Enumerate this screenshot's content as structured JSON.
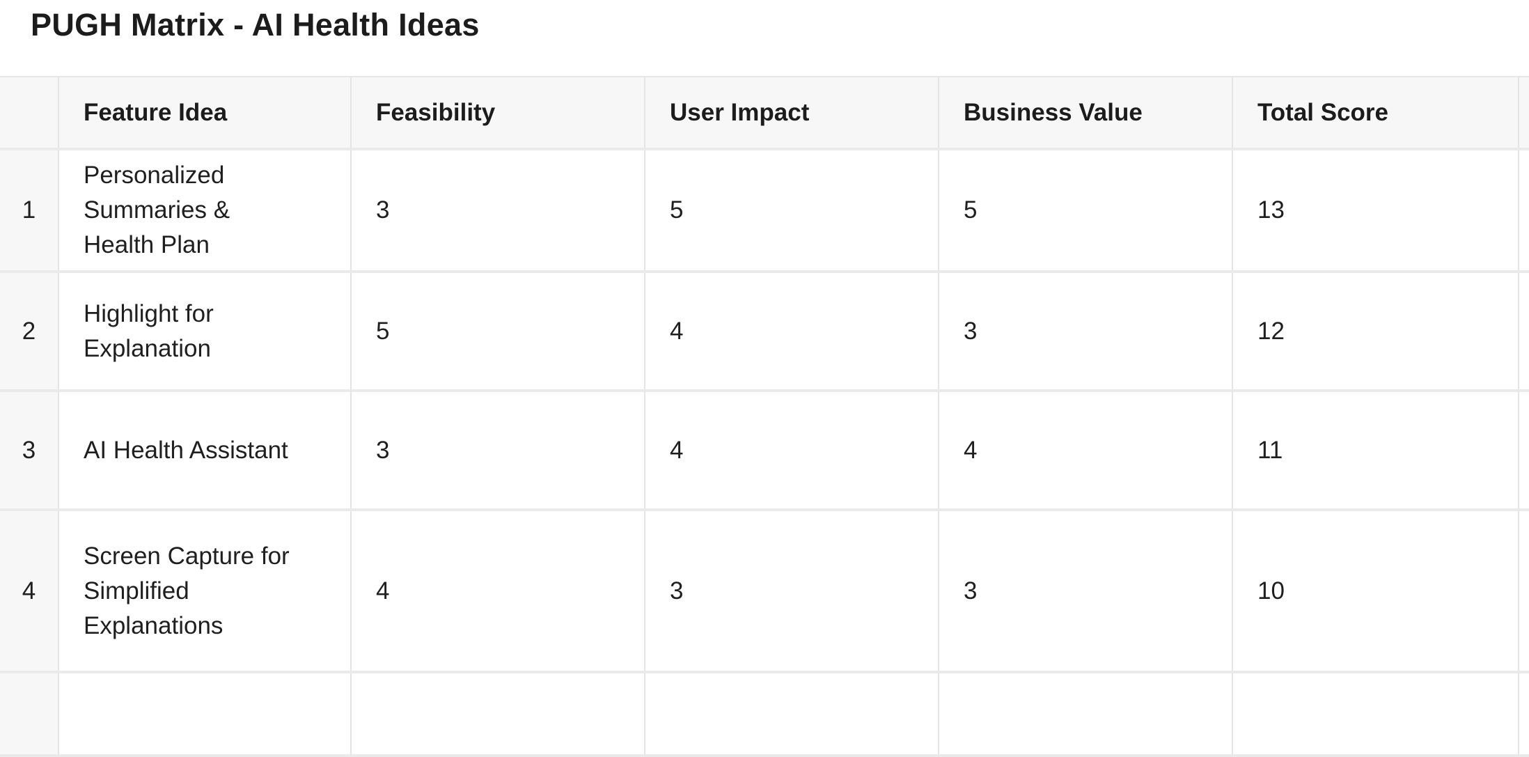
{
  "title": "PUGH Matrix - AI Health Ideas",
  "table": {
    "row_number_header": "",
    "columns": [
      "Feature Idea",
      "Feasibility",
      "User Impact",
      "Business Value",
      "Total Score"
    ],
    "rows": [
      {
        "num": "1",
        "feature": "Personalized\nSummaries &\nHealth Plan",
        "feasibility": "3",
        "user_impact": "5",
        "business_value": "5",
        "total_score": "13"
      },
      {
        "num": "2",
        "feature": "Highlight for\nExplanation",
        "feasibility": "5",
        "user_impact": "4",
        "business_value": "3",
        "total_score": "12"
      },
      {
        "num": "3",
        "feature": "AI Health Assistant",
        "feasibility": "3",
        "user_impact": "4",
        "business_value": "4",
        "total_score": "11"
      },
      {
        "num": "4",
        "feature": "Screen Capture for\nSimplified\nExplanations",
        "feasibility": "4",
        "user_impact": "3",
        "business_value": "3",
        "total_score": "10"
      }
    ]
  },
  "colors": {
    "background": "#ffffff",
    "header_bg": "#f7f7f7",
    "row_number_bg": "#f7f7f7",
    "border_horizontal": "#eaeaea",
    "border_vertical": "#e4e4e4",
    "text": "#1f1f1f"
  }
}
